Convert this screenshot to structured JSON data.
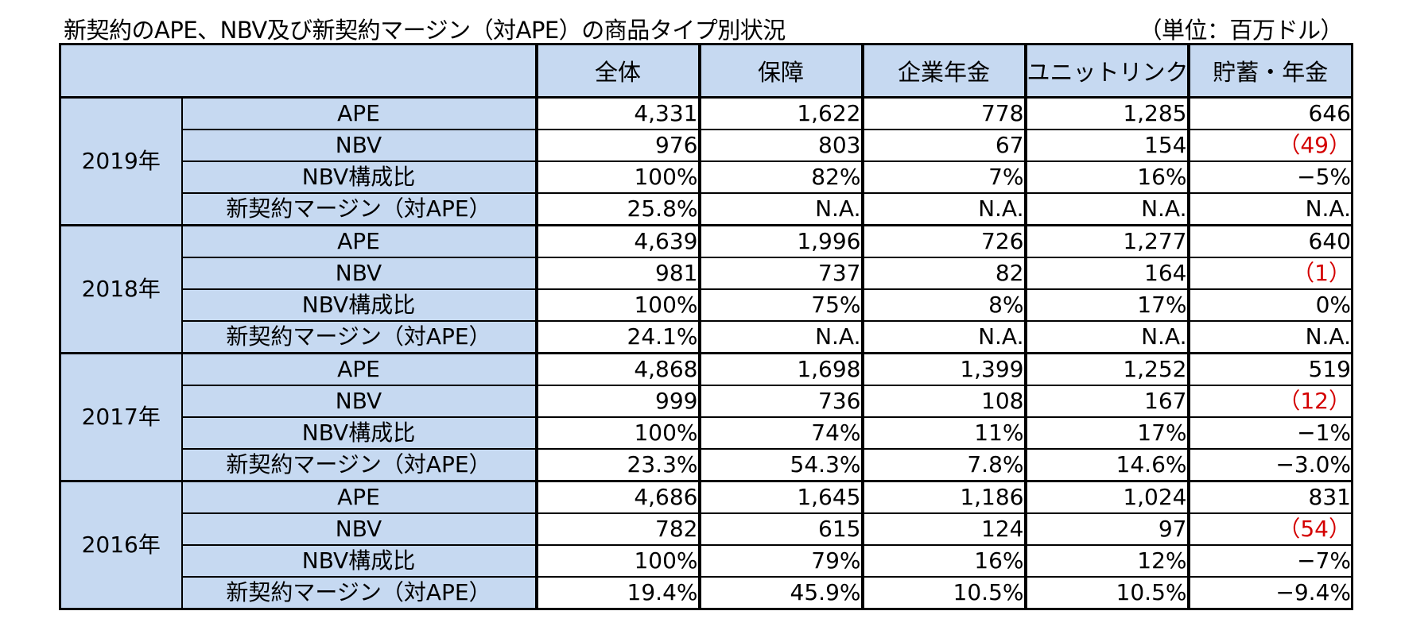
{
  "title": "新契約のAPE、NBV及び新契約マージン（対APE）の商品タイプ別状況",
  "unit": "（単位：百万ドル）",
  "columns": [
    "全体",
    "保障",
    "企業年金",
    "ユニットリンク",
    "貯蓄・年金"
  ],
  "negative_color": "#d40000",
  "header_fill": "#c6d9f1",
  "blocks": [
    {
      "year": "2019年",
      "rows": [
        {
          "label": "APE",
          "values": [
            "4,331",
            "1,622",
            "778",
            "1,285",
            "646"
          ]
        },
        {
          "label": "NBV",
          "values": [
            "976",
            "803",
            "67",
            "154",
            "（49）"
          ]
        },
        {
          "label": "NBV構成比",
          "values": [
            "100%",
            "82%",
            "7%",
            "16%",
            "−5%"
          ]
        },
        {
          "label": "新契約マージン（対APE）",
          "values": [
            "25.8%",
            "N.A.",
            "N.A.",
            "N.A.",
            "N.A."
          ]
        }
      ]
    },
    {
      "year": "2018年",
      "rows": [
        {
          "label": "APE",
          "values": [
            "4,639",
            "1,996",
            "726",
            "1,277",
            "640"
          ]
        },
        {
          "label": "NBV",
          "values": [
            "981",
            "737",
            "82",
            "164",
            "（1）"
          ]
        },
        {
          "label": "NBV構成比",
          "values": [
            "100%",
            "75%",
            "8%",
            "17%",
            "0%"
          ]
        },
        {
          "label": "新契約マージン（対APE）",
          "values": [
            "24.1%",
            "N.A.",
            "N.A.",
            "N.A.",
            "N.A."
          ]
        }
      ]
    },
    {
      "year": "2017年",
      "rows": [
        {
          "label": "APE",
          "values": [
            "4,868",
            "1,698",
            "1,399",
            "1,252",
            "519"
          ]
        },
        {
          "label": "NBV",
          "values": [
            "999",
            "736",
            "108",
            "167",
            "（12）"
          ]
        },
        {
          "label": "NBV構成比",
          "values": [
            "100%",
            "74%",
            "11%",
            "17%",
            "−1%"
          ]
        },
        {
          "label": "新契約マージン（対APE）",
          "values": [
            "23.3%",
            "54.3%",
            "7.8%",
            "14.6%",
            "−3.0%"
          ]
        }
      ]
    },
    {
      "year": "2016年",
      "rows": [
        {
          "label": "APE",
          "values": [
            "4,686",
            "1,645",
            "1,186",
            "1,024",
            "831"
          ]
        },
        {
          "label": "NBV",
          "values": [
            "782",
            "615",
            "124",
            "97",
            "（54）"
          ]
        },
        {
          "label": "NBV構成比",
          "values": [
            "100%",
            "79%",
            "16%",
            "12%",
            "−7%"
          ]
        },
        {
          "label": "新契約マージン（対APE）",
          "values": [
            "19.4%",
            "45.9%",
            "10.5%",
            "10.5%",
            "−9.4%"
          ]
        }
      ]
    }
  ]
}
